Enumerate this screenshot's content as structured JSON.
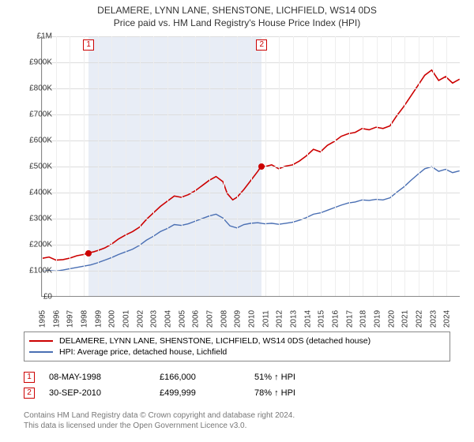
{
  "title_main": "DELAMERE, LYNN LANE, SHENSTONE, LICHFIELD, WS14 0DS",
  "title_sub": "Price paid vs. HM Land Registry's House Price Index (HPI)",
  "chart": {
    "type": "line",
    "background_color": "#ffffff",
    "grid_color": "#dddddd",
    "axis_color": "#888888",
    "label_fontsize": 10,
    "title_fontsize": 12,
    "y": {
      "min": 0,
      "max": 1000000,
      "tick_step": 100000,
      "ticks": [
        "£0",
        "£100K",
        "£200K",
        "£300K",
        "£400K",
        "£500K",
        "£600K",
        "£700K",
        "£800K",
        "£900K",
        "£1M"
      ]
    },
    "x": {
      "years": [
        1995,
        1996,
        1997,
        1998,
        1999,
        2000,
        2001,
        2002,
        2003,
        2004,
        2005,
        2006,
        2007,
        2008,
        2009,
        2010,
        2011,
        2012,
        2013,
        2014,
        2015,
        2016,
        2017,
        2018,
        2019,
        2020,
        2021,
        2022,
        2023,
        2024
      ]
    },
    "shaded_regions": [
      {
        "from_year": 1998.35,
        "to_year": 2010.75,
        "color": "#e8edf6"
      }
    ],
    "series": [
      {
        "name": "DELAMERE, LYNN LANE, SHENSTONE, LICHFIELD, WS14 0DS (detached house)",
        "color": "#cc0000",
        "line_width": 1.6,
        "points": [
          [
            1995,
            145000
          ],
          [
            1995.5,
            150000
          ],
          [
            1996,
            138000
          ],
          [
            1996.5,
            140000
          ],
          [
            1997,
            146000
          ],
          [
            1997.5,
            155000
          ],
          [
            1998,
            160000
          ],
          [
            1998.35,
            166000
          ],
          [
            1998.7,
            170000
          ],
          [
            1999,
            175000
          ],
          [
            1999.5,
            185000
          ],
          [
            2000,
            200000
          ],
          [
            2000.5,
            220000
          ],
          [
            2001,
            235000
          ],
          [
            2001.5,
            248000
          ],
          [
            2002,
            265000
          ],
          [
            2002.5,
            295000
          ],
          [
            2003,
            320000
          ],
          [
            2003.5,
            345000
          ],
          [
            2004,
            365000
          ],
          [
            2004.5,
            385000
          ],
          [
            2005,
            380000
          ],
          [
            2005.5,
            390000
          ],
          [
            2006,
            405000
          ],
          [
            2006.5,
            425000
          ],
          [
            2007,
            445000
          ],
          [
            2007.5,
            460000
          ],
          [
            2008,
            440000
          ],
          [
            2008.3,
            395000
          ],
          [
            2008.7,
            370000
          ],
          [
            2009,
            380000
          ],
          [
            2009.5,
            410000
          ],
          [
            2010,
            445000
          ],
          [
            2010.5,
            480000
          ],
          [
            2010.75,
            499999
          ],
          [
            2011,
            498000
          ],
          [
            2011.5,
            505000
          ],
          [
            2012,
            490000
          ],
          [
            2012.5,
            500000
          ],
          [
            2013,
            505000
          ],
          [
            2013.5,
            520000
          ],
          [
            2014,
            540000
          ],
          [
            2014.5,
            565000
          ],
          [
            2015,
            555000
          ],
          [
            2015.5,
            580000
          ],
          [
            2016,
            595000
          ],
          [
            2016.5,
            615000
          ],
          [
            2017,
            625000
          ],
          [
            2017.5,
            630000
          ],
          [
            2018,
            645000
          ],
          [
            2018.5,
            640000
          ],
          [
            2019,
            650000
          ],
          [
            2019.5,
            645000
          ],
          [
            2020,
            655000
          ],
          [
            2020.5,
            695000
          ],
          [
            2021,
            730000
          ],
          [
            2021.5,
            770000
          ],
          [
            2022,
            810000
          ],
          [
            2022.5,
            850000
          ],
          [
            2023,
            870000
          ],
          [
            2023.5,
            830000
          ],
          [
            2024,
            845000
          ],
          [
            2024.5,
            820000
          ],
          [
            2025,
            835000
          ]
        ]
      },
      {
        "name": "HPI: Average price, detached house, Lichfield",
        "color": "#4a6fb3",
        "line_width": 1.4,
        "points": [
          [
            1995,
            95000
          ],
          [
            1995.5,
            98000
          ],
          [
            1996,
            96000
          ],
          [
            1996.5,
            100000
          ],
          [
            1997,
            105000
          ],
          [
            1997.5,
            110000
          ],
          [
            1998,
            115000
          ],
          [
            1998.5,
            120000
          ],
          [
            1999,
            128000
          ],
          [
            1999.5,
            138000
          ],
          [
            2000,
            148000
          ],
          [
            2000.5,
            160000
          ],
          [
            2001,
            170000
          ],
          [
            2001.5,
            180000
          ],
          [
            2002,
            195000
          ],
          [
            2002.5,
            215000
          ],
          [
            2003,
            230000
          ],
          [
            2003.5,
            248000
          ],
          [
            2004,
            260000
          ],
          [
            2004.5,
            275000
          ],
          [
            2005,
            272000
          ],
          [
            2005.5,
            278000
          ],
          [
            2006,
            288000
          ],
          [
            2006.5,
            298000
          ],
          [
            2007,
            308000
          ],
          [
            2007.5,
            315000
          ],
          [
            2008,
            300000
          ],
          [
            2008.5,
            270000
          ],
          [
            2009,
            262000
          ],
          [
            2009.5,
            275000
          ],
          [
            2010,
            280000
          ],
          [
            2010.5,
            282000
          ],
          [
            2011,
            278000
          ],
          [
            2011.5,
            280000
          ],
          [
            2012,
            276000
          ],
          [
            2012.5,
            280000
          ],
          [
            2013,
            284000
          ],
          [
            2013.5,
            292000
          ],
          [
            2014,
            302000
          ],
          [
            2014.5,
            315000
          ],
          [
            2015,
            320000
          ],
          [
            2015.5,
            330000
          ],
          [
            2016,
            340000
          ],
          [
            2016.5,
            350000
          ],
          [
            2017,
            358000
          ],
          [
            2017.5,
            362000
          ],
          [
            2018,
            370000
          ],
          [
            2018.5,
            368000
          ],
          [
            2019,
            372000
          ],
          [
            2019.5,
            370000
          ],
          [
            2020,
            378000
          ],
          [
            2020.5,
            400000
          ],
          [
            2021,
            420000
          ],
          [
            2021.5,
            445000
          ],
          [
            2022,
            468000
          ],
          [
            2022.5,
            490000
          ],
          [
            2023,
            498000
          ],
          [
            2023.5,
            480000
          ],
          [
            2024,
            488000
          ],
          [
            2024.5,
            475000
          ],
          [
            2025,
            482000
          ]
        ]
      }
    ],
    "sales_markers": [
      {
        "id": "1",
        "year": 1998.35,
        "price": 166000,
        "color": "#cc0000"
      },
      {
        "id": "2",
        "year": 2010.75,
        "price": 499999,
        "color": "#cc0000"
      }
    ]
  },
  "legend": {
    "items": [
      {
        "color": "#cc0000",
        "label": "DELAMERE, LYNN LANE, SHENSTONE, LICHFIELD, WS14 0DS (detached house)"
      },
      {
        "color": "#4a6fb3",
        "label": "HPI: Average price, detached house, Lichfield"
      }
    ]
  },
  "sales_table": {
    "rows": [
      {
        "marker": "1",
        "date": "08-MAY-1998",
        "price": "£166,000",
        "hpi": "51% ↑ HPI"
      },
      {
        "marker": "2",
        "date": "30-SEP-2010",
        "price": "£499,999",
        "hpi": "78% ↑ HPI"
      }
    ]
  },
  "footer": {
    "line1": "Contains HM Land Registry data © Crown copyright and database right 2024.",
    "line2": "This data is licensed under the Open Government Licence v3.0."
  }
}
